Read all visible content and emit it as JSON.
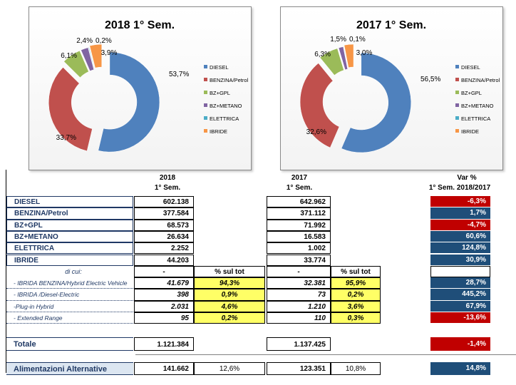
{
  "colors": {
    "diesel": "#4f81bd",
    "benzina": "#c0504d",
    "bzgpl": "#9bbb59",
    "bzmetano": "#8064a2",
    "elettrica": "#4bacc6",
    "ibride": "#f79646",
    "var_neg": "#c00000",
    "var_pos": "#1f4e79",
    "highlight": "#ffff66"
  },
  "chart_data": [
    {
      "type": "pie",
      "title": "2018 1° Sem.",
      "categories": [
        "DIESEL",
        "BENZINA/Petrol",
        "BZ+GPL",
        "BZ+METANO",
        "ELETTRICA",
        "IBRIDE"
      ],
      "values": [
        53.7,
        33.7,
        6.1,
        2.4,
        0.2,
        3.9
      ],
      "labels": [
        "53,7%",
        "33,7%",
        "6,1%",
        "2,4%",
        "0,2%",
        "3,9%"
      ],
      "legend": "right"
    },
    {
      "type": "pie",
      "title": "2017  1° Sem.",
      "categories": [
        "DIESEL",
        "BENZINA/Petrol",
        "BZ+GPL",
        "BZ+METANO",
        "ELETTRICA",
        "IBRIDE"
      ],
      "values": [
        56.5,
        32.6,
        6.3,
        1.5,
        0.1,
        3.0
      ],
      "labels": [
        "56,5%",
        "32,6%",
        "6,3%",
        "1,5%",
        "0,1%",
        "3,0%"
      ],
      "legend": "right"
    },
    {
      "type": "table",
      "headers": {
        "y2018_line1": "2018",
        "y2018_line2": "1° Sem.",
        "y2017_line1": "2017",
        "y2017_line2": "1° Sem.",
        "var_line1": "Var %",
        "var_line2": "1° Sem. 2018/2017"
      },
      "rows": [
        {
          "label": "DIESEL",
          "v2018": "602.138",
          "v2017": "642.962",
          "var": "-6,3%"
        },
        {
          "label": "BENZINA/Petrol",
          "v2018": "377.584",
          "v2017": "371.112",
          "var": "1,7%"
        },
        {
          "label": "BZ+GPL",
          "v2018": "68.573",
          "v2017": "71.992",
          "var": "-4,7%"
        },
        {
          "label": "BZ+METANO",
          "v2018": "26.634",
          "v2017": "16.583",
          "var": "60,6%"
        },
        {
          "label": "ELETTRICA",
          "v2018": "2.252",
          "v2017": "1.002",
          "var": "124,8%"
        },
        {
          "label": "IBRIDE",
          "v2018": "44.203",
          "v2017": "33.774",
          "var": "30,9%"
        }
      ],
      "subheader": {
        "label": "di cui:",
        "v2018": "-",
        "pct2018": "% sul tot",
        "v2017": "-",
        "pct2017": "% sul tot"
      },
      "subrows": [
        {
          "label": "- IBRIDA BENZINA/Hybrid Electric Vehicle",
          "v2018": "41.679",
          "pct2018": "94,3%",
          "v2017": "32.381",
          "pct2017": "95,9%",
          "var": "28,7%"
        },
        {
          "label": "- IBRIDA /Diesel-Electric",
          "v2018": "398",
          "pct2018": "0,9%",
          "v2017": "73",
          "pct2017": "0,2%",
          "var": "445,2%"
        },
        {
          "label": "-Plug-in Hybrid",
          "v2018": "2.031",
          "pct2018": "4,6%",
          "v2017": "1.210",
          "pct2017": "3,6%",
          "var": "67,9%"
        },
        {
          "label": "- Extended Range",
          "v2018": "95",
          "pct2018": "0,2%",
          "v2017": "110",
          "pct2017": "0,3%",
          "var": "-13,6%"
        }
      ],
      "totale": {
        "label": "Totale",
        "v2018": "1.121.384",
        "v2017": "1.137.425",
        "var": "-1,4%"
      },
      "alt": {
        "label": "Alimentazioni Alternative",
        "v2018": "141.662",
        "pct2018": "12,6%",
        "v2017": "123.351",
        "pct2017": "10,8%",
        "var": "14,8%"
      }
    }
  ]
}
